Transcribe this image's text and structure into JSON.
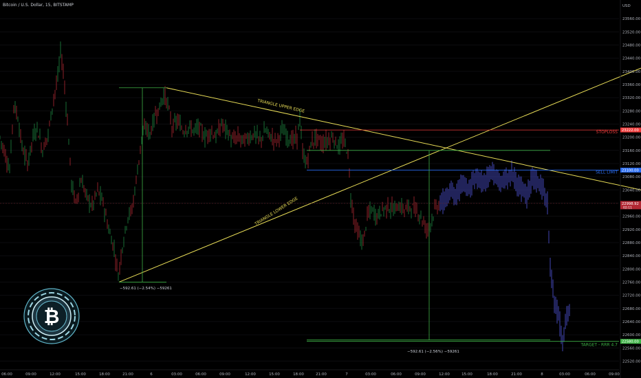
{
  "header": {
    "symbol_title": "Bitcoin / U.S. Dollar, 15, BITSTAMP",
    "currency": "USD"
  },
  "chart_data": {
    "type": "candlestick",
    "symbol": "Bitcoin / U.S. Dollar",
    "interval": "15",
    "exchange": "BITSTAMP",
    "y_axis": {
      "currency": "USD",
      "range": [
        22500,
        23600
      ],
      "ticks": [
        23560,
        23520,
        23480,
        23440,
        23400,
        23360,
        23320,
        23280,
        23240,
        23200,
        23160,
        23120,
        23080,
        23040,
        23000,
        22960,
        22920,
        22880,
        22840,
        22800,
        22760,
        22720,
        22680,
        22640,
        22600,
        22560,
        22520
      ]
    },
    "x_axis": {
      "ticks": [
        "06:00",
        "09:00",
        "12:00",
        "15:00",
        "18:00",
        "21:00",
        "6",
        "03:00",
        "06:00",
        "09:00",
        "12:00",
        "15:00",
        "18:00",
        "21:00",
        "7",
        "03:00",
        "06:00",
        "09:00",
        "12:00",
        "15:00",
        "18:00",
        "21:00",
        "8",
        "03:00",
        "06:00",
        "09:00"
      ]
    },
    "price_labels": [
      {
        "value": "23222.00",
        "label": "STOPLOSS",
        "color": "#ef3b3b"
      },
      {
        "value": "23100.00",
        "label": "SELL LIMIT",
        "color": "#2a6cf0"
      },
      {
        "value": "22998.92",
        "sublabel": "02:11",
        "color": "#b22833"
      },
      {
        "value": "22580.00",
        "label": "TARGET - RRR 4.7",
        "color": "#3fb247"
      }
    ],
    "annotations": [
      {
        "text": "TRIANGLE UPPER EDGE",
        "color": "#ecd64a"
      },
      {
        "text": "TRIANGLE LOWER EDGE",
        "color": "#ecd64a"
      },
      {
        "text": "−592.61 (−2.54%) −59261",
        "color": "#cfd3dc"
      },
      {
        "text": "−592.61 (−2.56%) −59261",
        "color": "#cfd3dc"
      }
    ],
    "colors": {
      "up_candle": "#1f8a43",
      "down_candle": "#b22833",
      "projection": "#4a4ec8",
      "triangle": "#e9dd57",
      "stoploss": "#ef3b3b",
      "sell_limit": "#2a6cf0",
      "target": "#3fb247",
      "measure": "#3fb247"
    },
    "candles_path": [
      [
        0,
        23200
      ],
      [
        6,
        23160
      ],
      [
        14,
        23100
      ],
      [
        20,
        23300
      ],
      [
        26,
        23260
      ],
      [
        32,
        23170
      ],
      [
        40,
        23120
      ],
      [
        48,
        23200
      ],
      [
        54,
        23230
      ],
      [
        62,
        23160
      ],
      [
        70,
        23210
      ],
      [
        78,
        23320
      ],
      [
        84,
        23380
      ],
      [
        88,
        23460
      ],
      [
        92,
        23400
      ],
      [
        98,
        23250
      ],
      [
        104,
        23060
      ],
      [
        110,
        23000
      ],
      [
        118,
        23070
      ],
      [
        126,
        23020
      ],
      [
        134,
        22990
      ],
      [
        142,
        23040
      ],
      [
        150,
        23000
      ],
      [
        158,
        22920
      ],
      [
        166,
        22860
      ],
      [
        172,
        22780
      ],
      [
        178,
        22870
      ],
      [
        186,
        22960
      ],
      [
        192,
        22980
      ],
      [
        200,
        23100
      ],
      [
        206,
        23200
      ],
      [
        212,
        23230
      ],
      [
        218,
        23210
      ],
      [
        226,
        23270
      ],
      [
        232,
        23290
      ],
      [
        238,
        23330
      ],
      [
        244,
        23300
      ],
      [
        250,
        23230
      ],
      [
        258,
        23250
      ],
      [
        266,
        23220
      ],
      [
        274,
        23230
      ],
      [
        282,
        23220
      ],
      [
        290,
        23230
      ],
      [
        298,
        23200
      ],
      [
        306,
        23220
      ],
      [
        314,
        23200
      ],
      [
        322,
        23240
      ],
      [
        330,
        23220
      ],
      [
        338,
        23190
      ],
      [
        346,
        23200
      ],
      [
        354,
        23190
      ],
      [
        362,
        23200
      ],
      [
        370,
        23210
      ],
      [
        378,
        23190
      ],
      [
        386,
        23220
      ],
      [
        394,
        23200
      ],
      [
        402,
        23190
      ],
      [
        410,
        23220
      ],
      [
        418,
        23200
      ],
      [
        426,
        23190
      ],
      [
        432,
        23200
      ],
      [
        436,
        23260
      ],
      [
        440,
        23150
      ],
      [
        446,
        23120
      ],
      [
        452,
        23180
      ],
      [
        460,
        23200
      ],
      [
        468,
        23180
      ],
      [
        476,
        23190
      ],
      [
        484,
        23200
      ],
      [
        492,
        23170
      ],
      [
        500,
        23190
      ],
      [
        506,
        23150
      ],
      [
        510,
        23020
      ],
      [
        516,
        22940
      ],
      [
        522,
        22900
      ],
      [
        528,
        22880
      ],
      [
        534,
        22960
      ],
      [
        540,
        22980
      ],
      [
        548,
        22960
      ],
      [
        556,
        22980
      ],
      [
        564,
        22990
      ],
      [
        572,
        22980
      ],
      [
        580,
        22990
      ],
      [
        588,
        22980
      ],
      [
        596,
        22990
      ],
      [
        604,
        22980
      ],
      [
        612,
        22960
      ],
      [
        620,
        22920
      ],
      [
        626,
        22940
      ],
      [
        632,
        22980
      ],
      [
        640,
        23000
      ]
    ],
    "projection_path": [
      [
        640,
        23000
      ],
      [
        648,
        23010
      ],
      [
        656,
        23040
      ],
      [
        664,
        23020
      ],
      [
        672,
        23060
      ],
      [
        680,
        23040
      ],
      [
        688,
        23070
      ],
      [
        696,
        23080
      ],
      [
        704,
        23060
      ],
      [
        712,
        23090
      ],
      [
        720,
        23080
      ],
      [
        728,
        23060
      ],
      [
        736,
        23070
      ],
      [
        744,
        23090
      ],
      [
        752,
        23050
      ],
      [
        760,
        23040
      ],
      [
        766,
        23020
      ],
      [
        774,
        23080
      ],
      [
        782,
        23060
      ],
      [
        790,
        23040
      ],
      [
        796,
        23000
      ],
      [
        800,
        22800
      ],
      [
        806,
        22700
      ],
      [
        812,
        22660
      ],
      [
        818,
        22580
      ],
      [
        824,
        22660
      ],
      [
        830,
        22680
      ]
    ],
    "triangle_upper": [
      [
        242,
        23350
      ],
      [
        932,
        23040
      ]
    ],
    "triangle_lower": [
      [
        173,
        22760
      ],
      [
        932,
        23410
      ]
    ],
    "measure_left": {
      "top": 23350,
      "bottom": 22760
    },
    "measure_right": {
      "top": 23160,
      "bottom": 22580
    }
  }
}
